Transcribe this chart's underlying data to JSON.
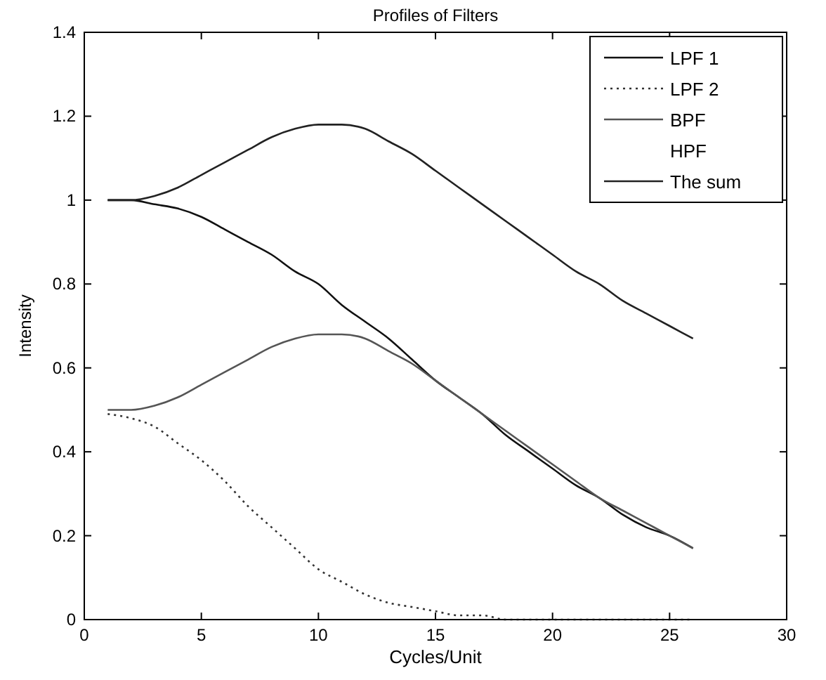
{
  "chart_data": {
    "type": "line",
    "title": "Profiles of Filters",
    "xlabel": "Cycles/Unit",
    "ylabel": "Intensity",
    "x": [
      1,
      2,
      3,
      4,
      5,
      6,
      7,
      8,
      9,
      10,
      11,
      12,
      13,
      14,
      15,
      16,
      17,
      18,
      19,
      20,
      21,
      22,
      23,
      24,
      25,
      26
    ],
    "xlim": [
      0,
      30
    ],
    "xticks": [
      0,
      5,
      10,
      15,
      20,
      25,
      30
    ],
    "ylim": [
      0,
      1.4
    ],
    "yticks": [
      0,
      0.2,
      0.4,
      0.6,
      0.8,
      1,
      1.2,
      1.4
    ],
    "grid": false,
    "legend": "top right",
    "marker": "none",
    "series": [
      {
        "name": "LPF 1",
        "color": "#111111",
        "line_style": "solid",
        "values": [
          1.0,
          1.0,
          0.99,
          0.98,
          0.96,
          0.93,
          0.9,
          0.87,
          0.83,
          0.8,
          0.75,
          0.71,
          0.67,
          0.62,
          0.57,
          0.53,
          0.49,
          0.44,
          0.4,
          0.36,
          0.32,
          0.29,
          0.25,
          0.22,
          0.2,
          0.17
        ]
      },
      {
        "name": "LPF 2",
        "color": "#333333",
        "line_style": "dotted",
        "values": [
          0.49,
          0.48,
          0.46,
          0.42,
          0.38,
          0.33,
          0.27,
          0.22,
          0.17,
          0.12,
          0.09,
          0.06,
          0.04,
          0.03,
          0.02,
          0.01,
          0.01,
          0,
          0,
          0,
          0,
          0,
          0,
          0,
          0,
          0
        ]
      },
      {
        "name": "BPF",
        "color": "#555555",
        "line_style": "solid",
        "values": [
          0.5,
          0.5,
          0.51,
          0.53,
          0.56,
          0.59,
          0.62,
          0.65,
          0.67,
          0.68,
          0.68,
          0.67,
          0.64,
          0.61,
          0.57,
          0.53,
          0.49,
          0.45,
          0.41,
          0.37,
          0.33,
          0.29,
          0.26,
          0.23,
          0.2,
          0.17
        ]
      },
      {
        "name": "HPF",
        "values": [
          null,
          null,
          null,
          null,
          null,
          null,
          null,
          null,
          null,
          null,
          null,
          null,
          null,
          null,
          null,
          null,
          null,
          null,
          null,
          null,
          null,
          null,
          null,
          null,
          null,
          null
        ]
      },
      {
        "name": "The sum",
        "color": "#222222",
        "line_style": "solid",
        "values": [
          1.0,
          1.0,
          1.01,
          1.03,
          1.06,
          1.09,
          1.12,
          1.15,
          1.17,
          1.18,
          1.18,
          1.17,
          1.14,
          1.11,
          1.07,
          1.03,
          0.99,
          0.95,
          0.91,
          0.87,
          0.83,
          0.8,
          0.76,
          0.73,
          0.7,
          0.67
        ]
      }
    ]
  }
}
